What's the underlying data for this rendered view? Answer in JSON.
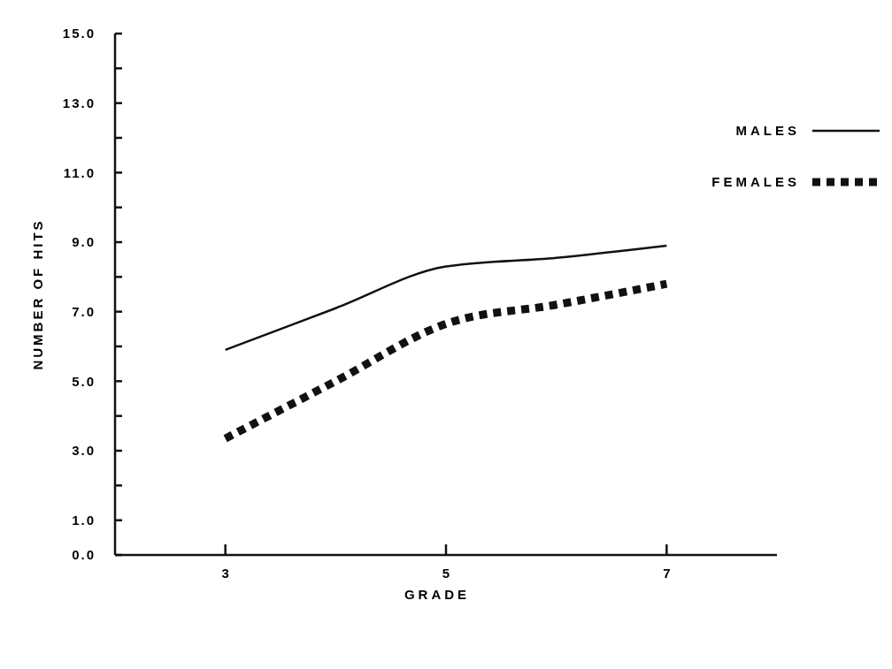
{
  "chart_data": {
    "type": "line",
    "xlabel": "GRADE",
    "ylabel": "NUMBER OF HITS",
    "xlim": [
      2,
      8
    ],
    "xticks": [
      3,
      5,
      7
    ],
    "ylim": [
      0,
      15
    ],
    "yticks": [
      {
        "value": 0,
        "label": "0.0"
      },
      {
        "value": 1,
        "label": "1.0"
      },
      {
        "value": 2,
        "label": null
      },
      {
        "value": 3,
        "label": "3.0"
      },
      {
        "value": 4,
        "label": null
      },
      {
        "value": 5,
        "label": "5.0"
      },
      {
        "value": 6,
        "label": null
      },
      {
        "value": 7,
        "label": "7.0"
      },
      {
        "value": 8,
        "label": null
      },
      {
        "value": 9,
        "label": "9.0"
      },
      {
        "value": 10,
        "label": null
      },
      {
        "value": 11,
        "label": "11.0"
      },
      {
        "value": 12,
        "label": null
      },
      {
        "value": 13,
        "label": "13.0"
      },
      {
        "value": 14,
        "label": null
      },
      {
        "value": 15,
        "label": "15.0"
      }
    ],
    "grid": false,
    "legend": "top right",
    "series": [
      {
        "name": "MALES",
        "color": "#111111",
        "line_style": "solid",
        "x": [
          3,
          4,
          5,
          6,
          7
        ],
        "values": [
          5.9,
          7.1,
          8.3,
          8.55,
          8.9
        ]
      },
      {
        "name": "FEMALES",
        "color": "#111111",
        "line_style": "dashed",
        "x": [
          3,
          4,
          5,
          6,
          7
        ],
        "values": [
          3.35,
          5.0,
          6.65,
          7.2,
          7.8
        ]
      }
    ]
  }
}
